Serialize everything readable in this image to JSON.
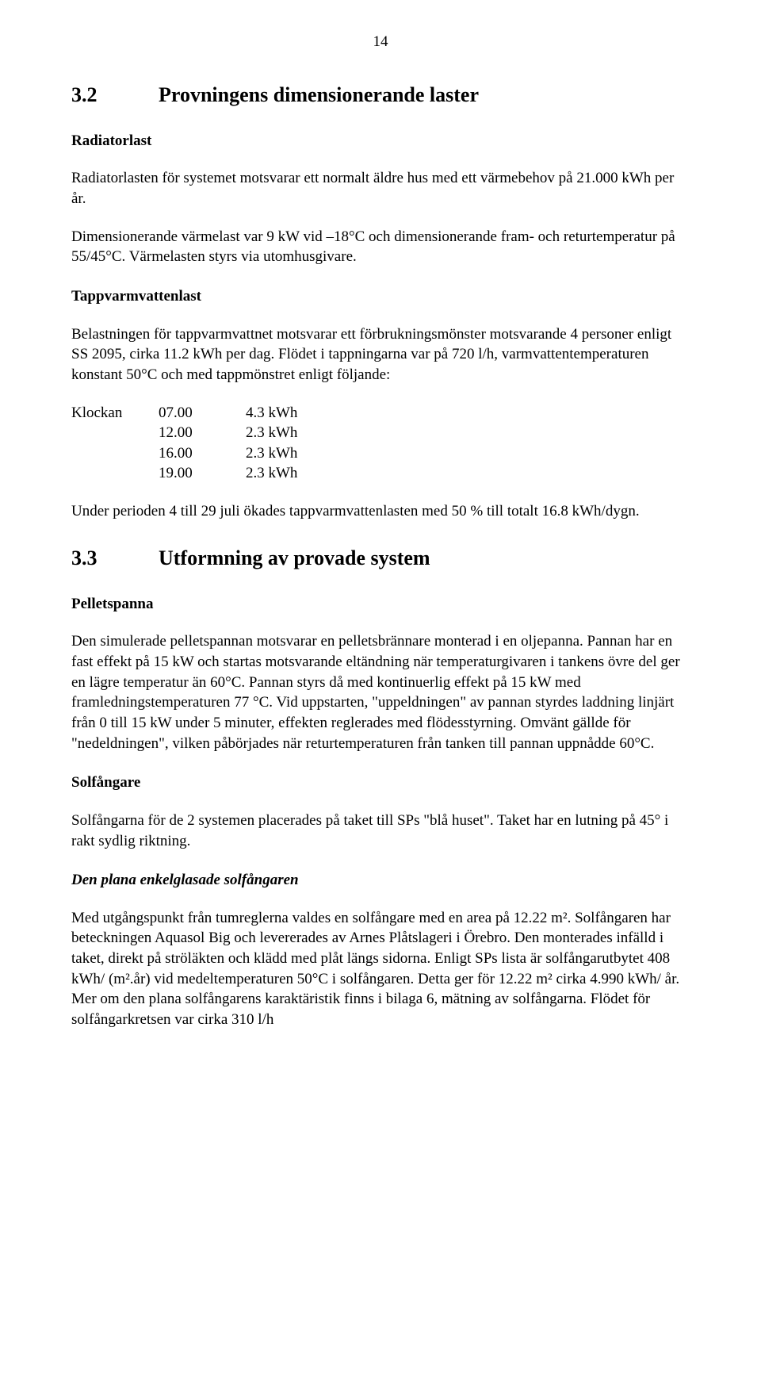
{
  "page_number": "14",
  "section_3_2": {
    "num": "3.2",
    "title": "Provningens dimensionerande laster",
    "radiatorlast": {
      "heading": "Radiatorlast",
      "p1": "Radiatorlasten för systemet motsvarar ett normalt äldre hus med ett värmebehov på 21.000 kWh per år.",
      "p2": "Dimensionerande värmelast var 9 kW vid –18°C och dimensionerande fram- och returtemperatur på 55/45°C. Värmelasten styrs via utomhusgivare."
    },
    "tappvarmvattenlast": {
      "heading": "Tappvarmvattenlast",
      "p1": "Belastningen för tappvarmvattnet motsvarar ett förbrukningsmönster motsvarande 4 personer enligt SS 2095, cirka 11.2 kWh per dag. Flödet i tappningarna var på 720 l/h, varmvattentemperaturen konstant 50°C och med tappmönstret enligt följande:",
      "table": {
        "label": "Klockan",
        "rows": [
          {
            "time": "07.00",
            "val": "4.3 kWh"
          },
          {
            "time": "12.00",
            "val": "2.3 kWh"
          },
          {
            "time": "16.00",
            "val": "2.3 kWh"
          },
          {
            "time": "19.00",
            "val": "2.3 kWh"
          }
        ]
      },
      "p2": "Under perioden 4 till 29 juli ökades tappvarmvattenlasten med 50 % till totalt 16.8 kWh/dygn."
    }
  },
  "section_3_3": {
    "num": "3.3",
    "title": "Utformning av provade system",
    "pelletspanna": {
      "heading": "Pelletspanna",
      "p1": "Den simulerade pelletspannan motsvarar en pelletsbrännare monterad i en oljepanna. Pannan har en fast effekt på 15 kW och startas motsvarande eltändning när temperaturgivaren i tankens övre del ger en lägre temperatur än 60°C. Pannan styrs då med kontinuerlig effekt på 15 kW med framledningstemperaturen 77 °C. Vid uppstarten, \"uppeldningen\" av pannan styrdes laddning linjärt från 0 till 15 kW under 5 minuter, effekten reglerades med flödesstyrning. Omvänt gällde för \"nedeldningen\", vilken påbörjades när returtemperaturen från tanken till pannan uppnådde 60°C."
    },
    "solfangare": {
      "heading": "Solfångare",
      "p1": "Solfångarna för de 2 systemen placerades på taket till SPs \"blå huset\". Taket har en lutning på 45° i rakt sydlig riktning."
    },
    "plana": {
      "heading": "Den plana enkelglasade solfångaren",
      "p1": "Med utgångspunkt från tumreglerna valdes en solfångare med en area på 12.22 m². Solfångaren har beteckningen Aquasol Big och levererades av Arnes Plåtslageri i Örebro. Den monterades infälld i taket, direkt på ströläkten och klädd med plåt längs sidorna. Enligt SPs lista är solfångarutbytet 408 kWh/ (m².år) vid medeltemperaturen 50°C i solfångaren. Detta ger för 12.22 m² cirka 4.990 kWh/ år. Mer om den plana solfångarens karaktäristik finns i bilaga 6, mätning av solfångarna. Flödet för solfångarkretsen var cirka 310 l/h"
    }
  }
}
